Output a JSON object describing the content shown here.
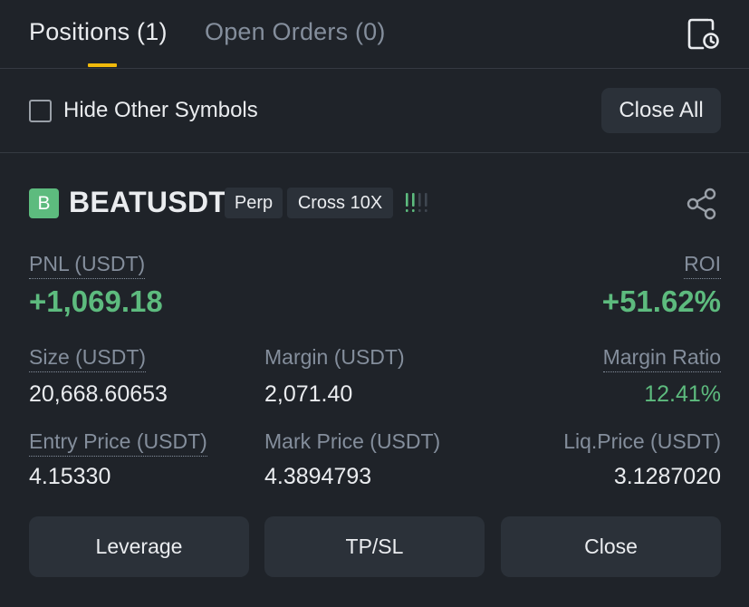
{
  "tabs": {
    "positions_label": "Positions (1)",
    "open_orders_label": "Open Orders (0)",
    "history_icon": "order-history-icon"
  },
  "filter": {
    "hide_other_symbols_label": "Hide Other Symbols",
    "hide_other_symbols_checked": false,
    "close_all_label": "Close All"
  },
  "position": {
    "symbol_badge": "B",
    "symbol": "BEATUSDT",
    "contract_type": "Perp",
    "margin_mode": "Cross 10X",
    "adl_icon": "adl-indicator-icon",
    "share_icon": "share-icon",
    "pnl_label": "PNL (USDT)",
    "pnl_value": "+1,069.18",
    "roi_label": "ROI",
    "roi_value": "+51.62%",
    "size_label": "Size (USDT)",
    "size_value": "20,668.60653",
    "margin_label": "Margin (USDT)",
    "margin_value": "2,071.40",
    "margin_ratio_label": "Margin Ratio",
    "margin_ratio_value": "12.41%",
    "entry_price_label": "Entry Price (USDT)",
    "entry_price_value": "4.15330",
    "mark_price_label": "Mark Price (USDT)",
    "mark_price_value": "4.3894793",
    "liq_price_label": "Liq.Price (USDT)",
    "liq_price_value": "3.1287020"
  },
  "actions": {
    "leverage_label": "Leverage",
    "tpsl_label": "TP/SL",
    "close_label": "Close"
  },
  "colors": {
    "background": "#1f2329",
    "surface": "#2b3139",
    "accent": "#f0b90b",
    "positive": "#5dbb7e",
    "text_primary": "#eaecef",
    "text_secondary": "#848e9c"
  }
}
